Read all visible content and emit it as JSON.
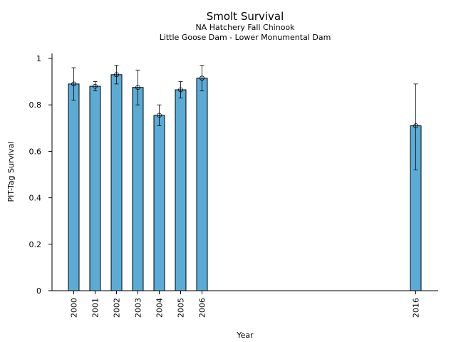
{
  "chart_data": {
    "type": "bar",
    "title": "Smolt Survival",
    "subtitle_1": "NA Hatchery Fall Chinook",
    "subtitle_2": "Little Goose Dam - Lower Monumental Dam",
    "xlabel": "Year",
    "ylabel": "PIT-Tag Survival",
    "ylim": [
      0,
      1.02
    ],
    "yticks": [
      0,
      0.2,
      0.4,
      0.6,
      0.8,
      1
    ],
    "ytick_labels": [
      "0",
      "0.2",
      "0.4",
      "0.6",
      "0.8",
      "1"
    ],
    "x_axis_kind": "year",
    "categories": [
      "2000",
      "2001",
      "2002",
      "2003",
      "2004",
      "2005",
      "2006",
      "2016"
    ],
    "x": [
      2000,
      2001,
      2002,
      2003,
      2004,
      2005,
      2006,
      2016
    ],
    "values": [
      0.89,
      0.88,
      0.93,
      0.875,
      0.755,
      0.865,
      0.915,
      0.71
    ],
    "err_low": [
      0.82,
      0.86,
      0.89,
      0.8,
      0.71,
      0.83,
      0.86,
      0.52
    ],
    "err_high": [
      0.96,
      0.9,
      0.97,
      0.95,
      0.8,
      0.9,
      0.97,
      0.89
    ],
    "grid": false,
    "legend": "none",
    "bar_color": "#5aacd6"
  }
}
